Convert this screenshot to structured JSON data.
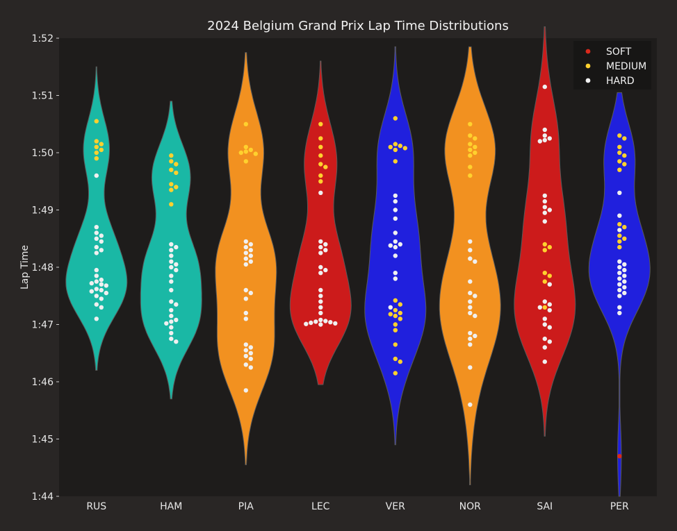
{
  "chart_data": {
    "type": "violin",
    "title": "2024 Belgium Grand Prix Lap Time Distributions",
    "xlabel": "",
    "ylabel": "Lap Time",
    "y_ticks": [
      "1:44",
      "1:45",
      "1:46",
      "1:47",
      "1:48",
      "1:49",
      "1:50",
      "1:51",
      "1:52"
    ],
    "ylim_seconds": [
      104,
      112
    ],
    "grid": false,
    "legend": {
      "placement": "top-right",
      "entries": [
        {
          "label": "SOFT",
          "color": "#da291c"
        },
        {
          "label": "MEDIUM",
          "color": "#ffd12e"
        },
        {
          "label": "HARD",
          "color": "#f0f0f0"
        }
      ]
    },
    "colors": {
      "background": "#292625",
      "plot_background": "#1e1c1b",
      "text": "#e8e8e8"
    },
    "drivers": [
      {
        "name": "RUS",
        "color": "#1ab8a5",
        "violin": {
          "min": 106.2,
          "max": 111.5
        },
        "laps": {
          "MEDIUM": [
            110.55,
            110.2,
            110.15,
            110.1,
            110.05,
            110.0,
            109.9
          ],
          "HARD": [
            109.6,
            108.7,
            108.6,
            108.55,
            108.5,
            108.45,
            108.35,
            108.3,
            108.25,
            107.95,
            107.85,
            107.78,
            107.75,
            107.72,
            107.7,
            107.68,
            107.62,
            107.6,
            107.58,
            107.55,
            107.5,
            107.45,
            107.35,
            107.3,
            107.1
          ]
        }
      },
      {
        "name": "HAM",
        "color": "#1ab8a5",
        "violin": {
          "min": 105.7,
          "max": 110.9
        },
        "laps": {
          "MEDIUM": [
            109.95,
            109.85,
            109.8,
            109.7,
            109.65,
            109.45,
            109.4,
            109.35,
            109.1
          ],
          "HARD": [
            108.4,
            108.35,
            108.3,
            108.2,
            108.1,
            108.05,
            108.0,
            107.95,
            107.85,
            107.75,
            107.6,
            107.4,
            107.35,
            107.25,
            107.15,
            107.08,
            107.05,
            107.02,
            106.95,
            106.85,
            106.75,
            106.7
          ]
        }
      },
      {
        "name": "PIA",
        "color": "#f29120",
        "violin": {
          "min": 104.55,
          "max": 111.75
        },
        "laps": {
          "MEDIUM": [
            110.5,
            110.1,
            110.05,
            110.02,
            110.0,
            109.98,
            109.85
          ],
          "HARD": [
            108.45,
            108.4,
            108.35,
            108.3,
            108.25,
            108.2,
            108.15,
            108.1,
            108.05,
            107.6,
            107.55,
            107.45,
            107.2,
            107.1,
            106.65,
            106.6,
            106.55,
            106.5,
            106.45,
            106.4,
            106.3,
            106.25,
            105.85
          ]
        }
      },
      {
        "name": "LEC",
        "color": "#cc1b1b",
        "violin": {
          "min": 105.95,
          "max": 111.6
        },
        "laps": {
          "MEDIUM": [
            110.5,
            110.25,
            110.1,
            109.95,
            109.8,
            109.75,
            109.6,
            109.5
          ],
          "HARD": [
            109.3,
            108.45,
            108.4,
            108.35,
            108.3,
            108.25,
            108.0,
            107.95,
            107.9,
            107.6,
            107.5,
            107.4,
            107.3,
            107.2,
            107.08,
            107.06,
            107.05,
            107.04,
            107.03,
            107.02,
            107.01,
            107.0
          ]
        }
      },
      {
        "name": "VER",
        "color": "#2020dd",
        "violin": {
          "min": 104.9,
          "max": 111.85
        },
        "laps": {
          "MEDIUM": [
            110.6,
            110.15,
            110.12,
            110.1,
            110.08,
            110.05,
            109.85,
            107.42,
            107.35,
            107.25,
            107.2,
            107.18,
            107.15,
            107.1,
            107.0,
            106.9,
            106.65,
            106.4,
            106.35,
            106.15
          ],
          "HARD": [
            109.25,
            109.15,
            109.0,
            108.85,
            108.6,
            108.45,
            108.4,
            108.38,
            108.35,
            108.2,
            107.9,
            107.8,
            107.3
          ]
        }
      },
      {
        "name": "NOR",
        "color": "#f29120",
        "violin": {
          "min": 104.2,
          "max": 111.85
        },
        "laps": {
          "MEDIUM": [
            110.5,
            110.3,
            110.25,
            110.15,
            110.1,
            110.05,
            110.0,
            109.95,
            109.75,
            109.6
          ],
          "HARD": [
            108.45,
            108.3,
            108.15,
            108.1,
            107.75,
            107.55,
            107.5,
            107.4,
            107.3,
            107.2,
            107.15,
            106.85,
            106.8,
            106.75,
            106.65,
            106.25,
            105.6
          ]
        }
      },
      {
        "name": "SAI",
        "color": "#cc1b1b",
        "violin": {
          "min": 105.05,
          "max": 112.2
        },
        "laps": {
          "MEDIUM": [
            108.4,
            108.35,
            108.3,
            107.9,
            107.85,
            107.75,
            107.3
          ],
          "HARD": [
            111.15,
            110.4,
            110.3,
            110.25,
            110.22,
            110.2,
            109.25,
            109.15,
            109.05,
            109.0,
            108.95,
            108.8,
            107.7,
            107.4,
            107.35,
            107.3,
            107.25,
            107.1,
            107.0,
            106.95,
            106.75,
            106.7,
            106.6,
            106.35
          ]
        }
      },
      {
        "name": "PER",
        "color": "#2020dd",
        "violin": {
          "min": 104.0,
          "max": 111.05
        },
        "laps": {
          "SOFT": [
            104.7
          ],
          "MEDIUM": [
            110.3,
            110.25,
            110.1,
            110.0,
            109.95,
            109.85,
            109.8,
            109.7,
            108.75,
            108.7,
            108.55,
            108.5,
            108.45,
            108.35
          ],
          "HARD": [
            109.3,
            108.9,
            108.65,
            108.1,
            108.05,
            108.0,
            107.95,
            107.9,
            107.85,
            107.8,
            107.75,
            107.7,
            107.65,
            107.6,
            107.55,
            107.5,
            107.3,
            107.2
          ]
        }
      }
    ]
  }
}
